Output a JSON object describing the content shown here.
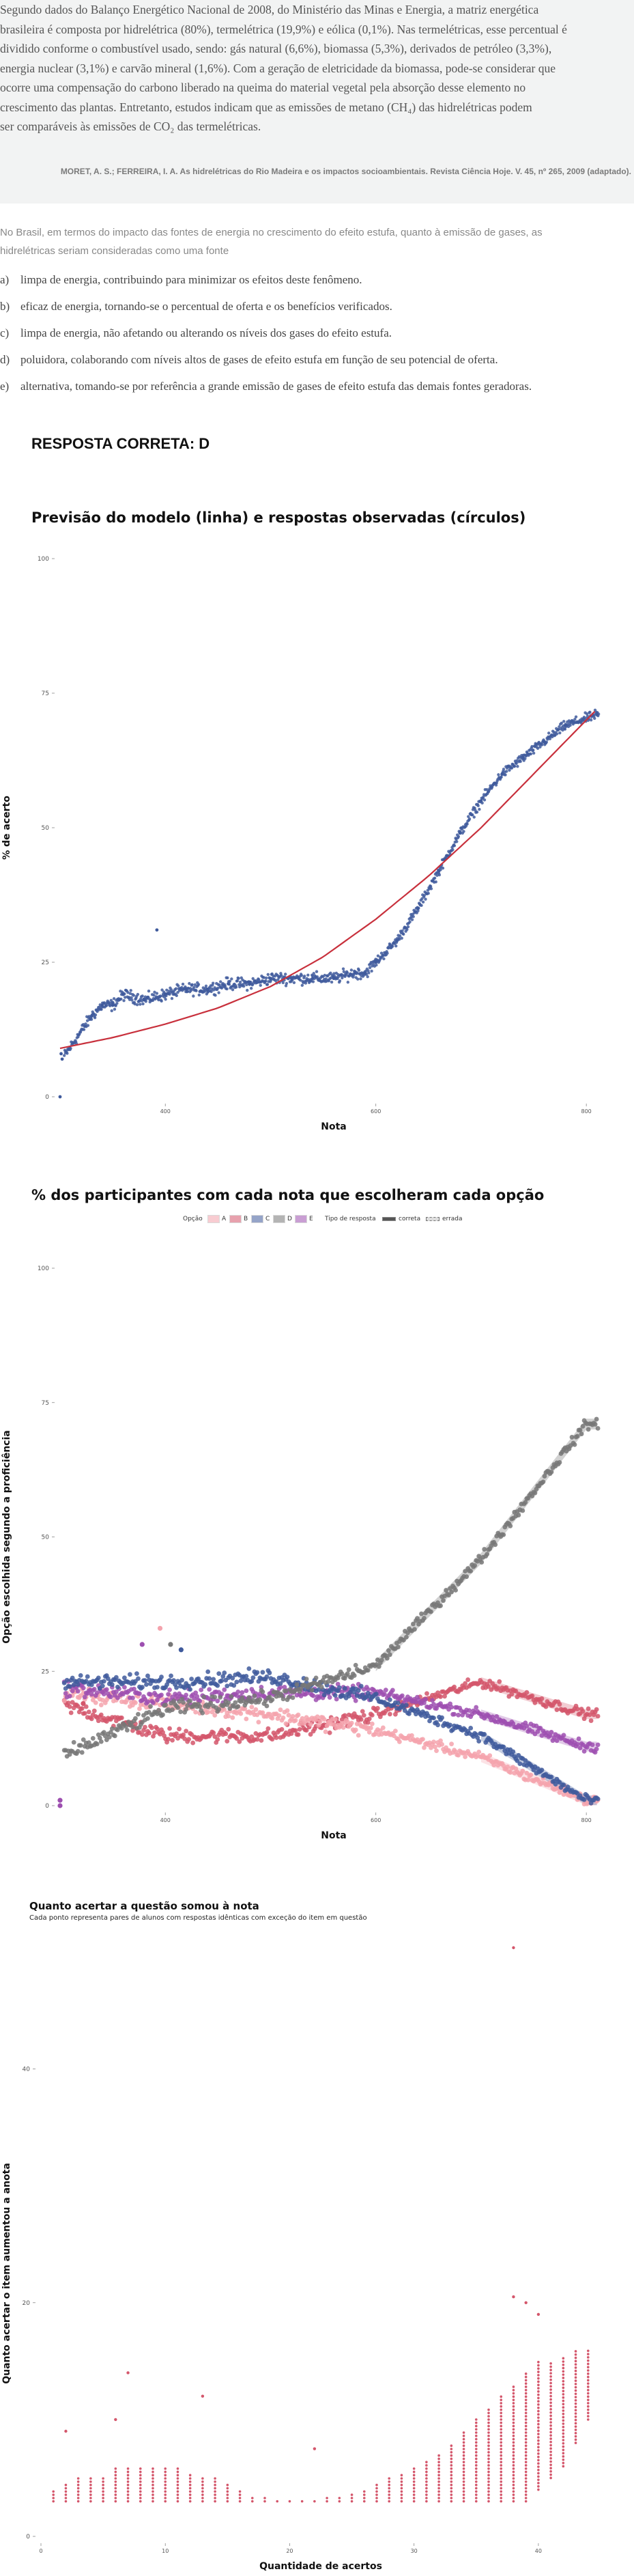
{
  "question": {
    "passage_lines": [
      "Segundo dados do Balanço Energético Nacional de 2008, do Ministério das Minas e Energia, a matriz energética",
      "brasileira é composta por hidrelétrica (80%), termelétrica (19,9%) e eólica (0,1%). Nas termelétricas, esse percentual é",
      "dividido conforme o combustível usado, sendo: gás natural (6,6%), biomassa (5,3%), derivados de petróleo (3,3%),",
      "energia nuclear (3,1%) e carvão mineral (1,6%). Com a geração de eletricidade da biomassa, pode-se considerar que",
      "ocorre uma compensação do carbono liberado na queima do material vegetal pela absorção desse elemento no",
      "crescimento das plantas. Entretanto, estudos indicam que as emissões de metano (CH₄) das hidrelétricas podem",
      "ser comparáveis às emissões de CO₂ das termelétricas."
    ],
    "citation": "MORET, A. S.; FERREIRA, I. A. As hidrelétricas do Rio Madeira e os impactos socioambientais. Revista Ciência Hoje. V. 45, nº 265, 2009 (adaptado).",
    "stem_lines": [
      "No Brasil, em termos do impacto das fontes de energia no crescimento do efeito estufa, quanto à emissão de gases, as",
      "hidrelétricas seriam consideradas como uma fonte"
    ],
    "options": [
      {
        "letter": "a)",
        "text": "limpa de energia, contribuindo para minimizar os efeitos deste fenômeno."
      },
      {
        "letter": "b)",
        "text": "eficaz de energia, tornando-se o percentual de oferta e os benefícios verificados."
      },
      {
        "letter": "c)",
        "text": "limpa de energia, não afetando ou alterando os níveis dos gases do efeito estufa."
      },
      {
        "letter": "d)",
        "text": "poluidora, colaborando com níveis altos de gases de efeito estufa em função de seu potencial de oferta."
      },
      {
        "letter": "e)",
        "text": "alternativa, tomando-se por referência a grande emissão de gases de efeito estufa das demais fontes geradoras."
      }
    ],
    "answer": "RESPOSTA CORRETA: D"
  },
  "chart_data": [
    {
      "type": "scatter",
      "title": "Previsão do modelo (linha) e respostas observadas (círculos)",
      "xlabel": "Nota",
      "ylabel": "% de acerto",
      "xlim": [
        300,
        820
      ],
      "ylim": [
        0,
        100
      ],
      "xticks": [
        "400",
        "600",
        "800"
      ],
      "xtick_values": [
        400,
        600,
        800
      ],
      "yticks": [
        "0",
        "25",
        "50",
        "75",
        "100"
      ],
      "ytick_values": [
        0,
        25,
        50,
        75,
        100
      ],
      "grid": false,
      "series": [
        {
          "kind": "points",
          "color": "#3f5a9c",
          "points": [
            [
              300,
              0
            ],
            [
              301,
              8
            ],
            [
              302,
              7
            ],
            [
              330,
              15
            ],
            [
              340,
              17
            ],
            [
              350,
              17
            ],
            [
              360,
              19
            ],
            [
              380,
              18
            ],
            [
              400,
              19
            ],
            [
              420,
              20
            ],
            [
              440,
              20
            ],
            [
              460,
              21
            ],
            [
              480,
              21
            ],
            [
              500,
              22
            ],
            [
              520,
              22
            ],
            [
              540,
              22
            ],
            [
              560,
              22
            ],
            [
              580,
              23
            ],
            [
              590,
              23
            ],
            [
              600,
              25
            ],
            [
              620,
              29
            ],
            [
              640,
              35
            ],
            [
              660,
              42
            ],
            [
              680,
              49
            ],
            [
              700,
              55
            ],
            [
              720,
              60
            ],
            [
              740,
              63
            ],
            [
              760,
              66
            ],
            [
              780,
              69
            ],
            [
              810,
              71
            ],
            [
              392,
              31
            ]
          ]
        },
        {
          "kind": "line",
          "color": "#c8303c",
          "points": [
            [
              300,
              9
            ],
            [
              350,
              11
            ],
            [
              400,
              13.5
            ],
            [
              450,
              16.5
            ],
            [
              500,
              20.5
            ],
            [
              550,
              26
            ],
            [
              600,
              33
            ],
            [
              650,
              41
            ],
            [
              700,
              50
            ],
            [
              750,
              60
            ],
            [
              810,
              72
            ]
          ]
        }
      ]
    },
    {
      "type": "scatter",
      "title": "% dos participantes com cada nota que escolheram cada opção",
      "xlabel": "Nota",
      "ylabel": "Opção escolhida segundo a proficiência",
      "xlim": [
        300,
        820
      ],
      "ylim": [
        0,
        100
      ],
      "xticks": [
        "400",
        "600",
        "800"
      ],
      "xtick_values": [
        400,
        600,
        800
      ],
      "yticks": [
        "0",
        "25",
        "50",
        "75",
        "100"
      ],
      "ytick_values": [
        0,
        25,
        50,
        75,
        100
      ],
      "legend": {
        "position": "top",
        "option_title": "Opção",
        "options": [
          {
            "label": "A",
            "color": "#f4a3ad"
          },
          {
            "label": "B",
            "color": "#d4566b"
          },
          {
            "label": "C",
            "color": "#3f5a9c"
          },
          {
            "label": "D",
            "color": "#777777"
          },
          {
            "label": "E",
            "color": "#9d4fb0"
          }
        ],
        "type_title": "Tipo de resposta",
        "types": [
          "correta",
          "errada"
        ]
      },
      "series": [
        {
          "name": "A",
          "color": "#f4a3ad",
          "points": [
            [
              300,
              21
            ],
            [
              400,
              19
            ],
            [
              500,
              17
            ],
            [
              600,
              14
            ],
            [
              700,
              9
            ],
            [
              800,
              1
            ]
          ]
        },
        {
          "name": "B",
          "color": "#d4566b",
          "points": [
            [
              300,
              19
            ],
            [
              400,
              13
            ],
            [
              500,
              13
            ],
            [
              600,
              17
            ],
            [
              700,
              23
            ],
            [
              800,
              17
            ]
          ]
        },
        {
          "name": "C",
          "color": "#3f5a9c",
          "points": [
            [
              300,
              23
            ],
            [
              400,
              23
            ],
            [
              500,
              24
            ],
            [
              600,
              20
            ],
            [
              700,
              13
            ],
            [
              800,
              1
            ]
          ]
        },
        {
          "name": "D",
          "color": "#777777",
          "points": [
            [
              300,
              9
            ],
            [
              400,
              18
            ],
            [
              500,
              20
            ],
            [
              600,
              26
            ],
            [
              700,
              46
            ],
            [
              800,
              71
            ]
          ]
        },
        {
          "name": "E",
          "color": "#9d4fb0",
          "points": [
            [
              300,
              22
            ],
            [
              400,
              20
            ],
            [
              500,
              21
            ],
            [
              600,
              21
            ],
            [
              700,
              17
            ],
            [
              800,
              11
            ]
          ]
        }
      ]
    },
    {
      "type": "scatter",
      "title": "Quanto acertar a questão somou à nota",
      "subtitle": "Cada ponto representa pares de alunos com respostas idênticas com exceção do item em questão",
      "xlabel": "Quantidade de acertos",
      "ylabel": "Quanto acertar o item aumentou a anota",
      "xlim": [
        0,
        45
      ],
      "ylim": [
        0,
        45
      ],
      "xticks": [
        "0",
        "10",
        "20",
        "30",
        "40"
      ],
      "xtick_values": [
        0,
        10,
        20,
        30,
        40
      ],
      "yticks": [
        "0",
        "20",
        "40"
      ],
      "ytick_values": [
        0,
        20,
        40
      ],
      "color": "#d4566b",
      "columns": [
        {
          "x": 1,
          "lo": 3,
          "hi": 4
        },
        {
          "x": 2,
          "lo": 3,
          "hi": 4.5
        },
        {
          "x": 3,
          "lo": 3,
          "hi": 5
        },
        {
          "x": 4,
          "lo": 3,
          "hi": 5
        },
        {
          "x": 5,
          "lo": 3,
          "hi": 5
        },
        {
          "x": 6,
          "lo": 3,
          "hi": 6
        },
        {
          "x": 7,
          "lo": 3,
          "hi": 6
        },
        {
          "x": 8,
          "lo": 3,
          "hi": 6
        },
        {
          "x": 9,
          "lo": 3,
          "hi": 6
        },
        {
          "x": 10,
          "lo": 3,
          "hi": 6
        },
        {
          "x": 11,
          "lo": 3,
          "hi": 6
        },
        {
          "x": 12,
          "lo": 3,
          "hi": 5.5
        },
        {
          "x": 13,
          "lo": 3,
          "hi": 5
        },
        {
          "x": 14,
          "lo": 3,
          "hi": 5
        },
        {
          "x": 15,
          "lo": 3,
          "hi": 4.5
        },
        {
          "x": 16,
          "lo": 3,
          "hi": 4
        },
        {
          "x": 17,
          "lo": 3,
          "hi": 3.5
        },
        {
          "x": 18,
          "lo": 3,
          "hi": 3.5
        },
        {
          "x": 19,
          "lo": 3,
          "hi": 3.2
        },
        {
          "x": 20,
          "lo": 3,
          "hi": 3.2
        },
        {
          "x": 21,
          "lo": 3,
          "hi": 3.2
        },
        {
          "x": 22,
          "lo": 3,
          "hi": 3.2
        },
        {
          "x": 23,
          "lo": 3,
          "hi": 3.3
        },
        {
          "x": 24,
          "lo": 3,
          "hi": 3.5
        },
        {
          "x": 25,
          "lo": 3,
          "hi": 3.7
        },
        {
          "x": 26,
          "lo": 3,
          "hi": 4
        },
        {
          "x": 27,
          "lo": 3,
          "hi": 4.5
        },
        {
          "x": 28,
          "lo": 3,
          "hi": 5
        },
        {
          "x": 29,
          "lo": 3,
          "hi": 5.5
        },
        {
          "x": 30,
          "lo": 3,
          "hi": 6
        },
        {
          "x": 31,
          "lo": 3,
          "hi": 6.5
        },
        {
          "x": 32,
          "lo": 3,
          "hi": 7
        },
        {
          "x": 33,
          "lo": 3,
          "hi": 8
        },
        {
          "x": 34,
          "lo": 3,
          "hi": 9
        },
        {
          "x": 35,
          "lo": 3,
          "hi": 10
        },
        {
          "x": 36,
          "lo": 3,
          "hi": 11
        },
        {
          "x": 37,
          "lo": 3,
          "hi": 12
        },
        {
          "x": 38,
          "lo": 3,
          "hi": 13
        },
        {
          "x": 39,
          "lo": 3,
          "hi": 14
        },
        {
          "x": 40,
          "lo": 4,
          "hi": 15
        },
        {
          "x": 41,
          "lo": 5,
          "hi": 15
        },
        {
          "x": 42,
          "lo": 6,
          "hi": 15.5
        },
        {
          "x": 43,
          "lo": 8,
          "hi": 16
        },
        {
          "x": 44,
          "lo": 10,
          "hi": 16
        }
      ],
      "outliers": [
        [
          2,
          9
        ],
        [
          6,
          10
        ],
        [
          7,
          14
        ],
        [
          13,
          12
        ],
        [
          22,
          7.5
        ],
        [
          38,
          20.5
        ],
        [
          39,
          20
        ],
        [
          40,
          19
        ],
        [
          38,
          55
        ]
      ]
    }
  ]
}
